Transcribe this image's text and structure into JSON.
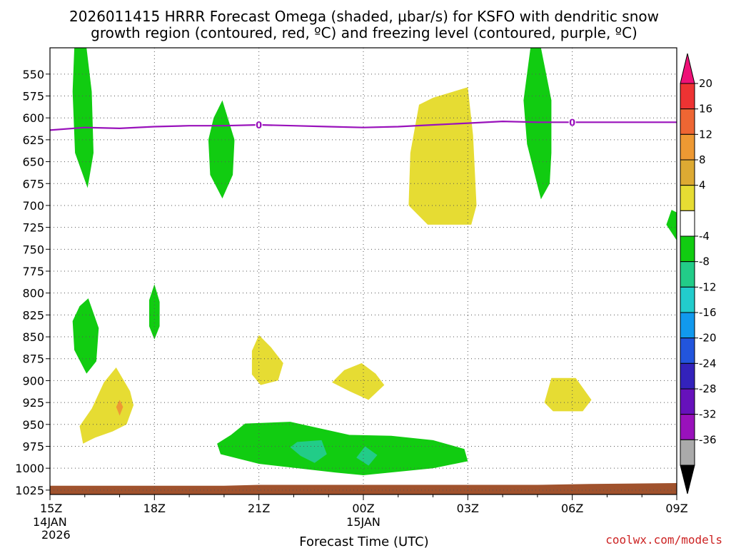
{
  "chart_data": {
    "type": "contour-time-height",
    "title_line1": "2026011415 HRRR Forecast Omega (shaded, µbar/s) for KSFO with dendritic snow",
    "title_line2": "growth region (contoured, red, ºC) and freezing level (contoured, purple, ºC)",
    "xlabel": "Forecast Time (UTC)",
    "credit": "coolwx.com/models",
    "credit_color": "#cc2222",
    "x_range_hours": [
      0,
      18
    ],
    "y_range_hpa": [
      520,
      1030
    ],
    "y_ticks": [
      550,
      575,
      600,
      625,
      650,
      675,
      700,
      725,
      750,
      775,
      800,
      825,
      850,
      875,
      900,
      925,
      950,
      975,
      1000,
      1025
    ],
    "x_ticks": [
      {
        "hour": 0,
        "label": "15Z",
        "sub1": "14JAN",
        "sub2": "2026"
      },
      {
        "hour": 3,
        "label": "18Z",
        "sub1": "",
        "sub2": ""
      },
      {
        "hour": 6,
        "label": "21Z",
        "sub1": "",
        "sub2": ""
      },
      {
        "hour": 9,
        "label": "00Z",
        "sub1": "15JAN",
        "sub2": ""
      },
      {
        "hour": 12,
        "label": "03Z",
        "sub1": "",
        "sub2": ""
      },
      {
        "hour": 15,
        "label": "06Z",
        "sub1": "",
        "sub2": ""
      },
      {
        "hour": 18,
        "label": "09Z",
        "sub1": "",
        "sub2": ""
      }
    ],
    "colorbar": {
      "labels": [
        "20",
        "16",
        "12",
        "8",
        "4",
        "-4",
        "-8",
        "-12",
        "-16",
        "-20",
        "-24",
        "-28",
        "-32",
        "-36"
      ],
      "colors": [
        "#ee1177",
        "#ee3333",
        "#ee6633",
        "#ee9933",
        "#ddaa33",
        "#e6dc33",
        "#ffffff",
        "#11cc11",
        "#22cc88",
        "#22cccc",
        "#1199ee",
        "#2255dd",
        "#3322bb",
        "#6611bb",
        "#9911bb",
        "#aaaaaa",
        "#000000"
      ]
    },
    "freezing_level": {
      "color": "#9911bb",
      "label": "0",
      "label_points": [
        [
          6.0,
          608
        ],
        [
          15.0,
          605
        ]
      ],
      "points": [
        [
          0,
          614
        ],
        [
          1,
          611
        ],
        [
          2,
          612
        ],
        [
          3,
          610
        ],
        [
          4,
          609
        ],
        [
          5,
          609
        ],
        [
          6,
          608
        ],
        [
          7,
          609
        ],
        [
          8,
          610
        ],
        [
          9,
          611
        ],
        [
          10,
          610
        ],
        [
          11,
          608
        ],
        [
          12,
          606
        ],
        [
          13,
          604
        ],
        [
          14,
          605
        ],
        [
          15,
          605
        ],
        [
          16,
          605
        ],
        [
          17,
          605
        ],
        [
          18,
          605
        ]
      ]
    },
    "ground": {
      "color": "#a0522d",
      "points": [
        [
          0,
          1020
        ],
        [
          5,
          1020
        ],
        [
          6,
          1019
        ],
        [
          14,
          1019
        ],
        [
          15.5,
          1018
        ],
        [
          18,
          1017
        ]
      ]
    },
    "omega_regions": [
      {
        "name": "green-upper-1",
        "color": "#11cc11",
        "points": [
          [
            0.7,
            520
          ],
          [
            1.05,
            520
          ],
          [
            1.2,
            570
          ],
          [
            1.25,
            640
          ],
          [
            1.08,
            680
          ],
          [
            0.72,
            640
          ],
          [
            0.65,
            570
          ]
        ]
      },
      {
        "name": "green-upper-2",
        "color": "#11cc11",
        "points": [
          [
            4.95,
            580
          ],
          [
            5.3,
            625
          ],
          [
            5.25,
            665
          ],
          [
            4.95,
            692
          ],
          [
            4.6,
            665
          ],
          [
            4.55,
            625
          ],
          [
            4.7,
            600
          ]
        ]
      },
      {
        "name": "yellow-upper",
        "color": "#e6dc33",
        "points": [
          [
            12.0,
            565
          ],
          [
            12.15,
            620
          ],
          [
            12.25,
            700
          ],
          [
            12.1,
            722
          ],
          [
            10.85,
            722
          ],
          [
            10.3,
            700
          ],
          [
            10.35,
            640
          ],
          [
            10.6,
            585
          ],
          [
            11.0,
            577
          ]
        ]
      },
      {
        "name": "green-upper-3",
        "color": "#11cc11",
        "points": [
          [
            13.8,
            520
          ],
          [
            14.1,
            520
          ],
          [
            14.4,
            580
          ],
          [
            14.4,
            640
          ],
          [
            14.35,
            675
          ],
          [
            14.1,
            693
          ],
          [
            13.7,
            630
          ],
          [
            13.6,
            580
          ],
          [
            13.65,
            565
          ]
        ]
      },
      {
        "name": "green-edge",
        "color": "#11cc11",
        "points": [
          [
            18.0,
            708
          ],
          [
            18.0,
            740
          ],
          [
            17.7,
            722
          ],
          [
            17.85,
            705
          ]
        ]
      },
      {
        "name": "green-low-1",
        "color": "#11cc11",
        "points": [
          [
            1.1,
            806
          ],
          [
            1.4,
            840
          ],
          [
            1.33,
            878
          ],
          [
            1.05,
            892
          ],
          [
            0.7,
            865
          ],
          [
            0.65,
            832
          ],
          [
            0.85,
            815
          ]
        ]
      },
      {
        "name": "green-low-2",
        "color": "#11cc11",
        "points": [
          [
            3.0,
            790
          ],
          [
            3.15,
            810
          ],
          [
            3.15,
            838
          ],
          [
            3.0,
            853
          ],
          [
            2.85,
            838
          ],
          [
            2.85,
            808
          ]
        ]
      },
      {
        "name": "yellow-low-1",
        "color": "#e6dc33",
        "points": [
          [
            1.9,
            885
          ],
          [
            2.3,
            912
          ],
          [
            2.4,
            928
          ],
          [
            2.2,
            950
          ],
          [
            1.8,
            958
          ],
          [
            1.3,
            965
          ],
          [
            0.95,
            972
          ],
          [
            0.85,
            952
          ],
          [
            1.2,
            932
          ],
          [
            1.55,
            902
          ]
        ]
      },
      {
        "name": "orange-dot",
        "color": "#ee9933",
        "points": [
          [
            2.0,
            922
          ],
          [
            2.1,
            930
          ],
          [
            2.0,
            940
          ],
          [
            1.9,
            930
          ]
        ]
      },
      {
        "name": "yellow-low-2",
        "color": "#e6dc33",
        "points": [
          [
            6.0,
            848
          ],
          [
            6.35,
            862
          ],
          [
            6.7,
            880
          ],
          [
            6.55,
            900
          ],
          [
            6.05,
            905
          ],
          [
            5.8,
            893
          ],
          [
            5.8,
            866
          ]
        ]
      },
      {
        "name": "yellow-low-3",
        "color": "#e6dc33",
        "points": [
          [
            8.95,
            880
          ],
          [
            9.35,
            892
          ],
          [
            9.6,
            905
          ],
          [
            9.15,
            922
          ],
          [
            8.6,
            912
          ],
          [
            8.1,
            902
          ],
          [
            8.45,
            888
          ]
        ]
      },
      {
        "name": "yellow-low-4",
        "color": "#e6dc33",
        "points": [
          [
            14.4,
            897
          ],
          [
            15.1,
            897
          ],
          [
            15.55,
            922
          ],
          [
            15.3,
            935
          ],
          [
            14.45,
            935
          ],
          [
            14.2,
            925
          ]
        ]
      },
      {
        "name": "green-low-3",
        "color": "#11cc11",
        "points": [
          [
            5.6,
            949
          ],
          [
            6.9,
            947
          ],
          [
            7.8,
            955
          ],
          [
            8.6,
            962
          ],
          [
            9.8,
            963
          ],
          [
            11.0,
            968
          ],
          [
            11.9,
            978
          ],
          [
            12.0,
            992
          ],
          [
            11.0,
            1000
          ],
          [
            9.0,
            1008
          ],
          [
            8.2,
            1005
          ],
          [
            6.0,
            995
          ],
          [
            4.9,
            984
          ],
          [
            4.8,
            972
          ],
          [
            5.2,
            962
          ]
        ]
      },
      {
        "name": "teal-1",
        "color": "#22cc88",
        "points": [
          [
            7.1,
            970
          ],
          [
            7.8,
            968
          ],
          [
            7.95,
            984
          ],
          [
            7.6,
            994
          ],
          [
            7.2,
            986
          ],
          [
            6.9,
            976
          ]
        ]
      },
      {
        "name": "teal-2",
        "color": "#22cc88",
        "points": [
          [
            9.05,
            975
          ],
          [
            9.4,
            985
          ],
          [
            9.15,
            997
          ],
          [
            8.8,
            988
          ]
        ]
      }
    ]
  }
}
